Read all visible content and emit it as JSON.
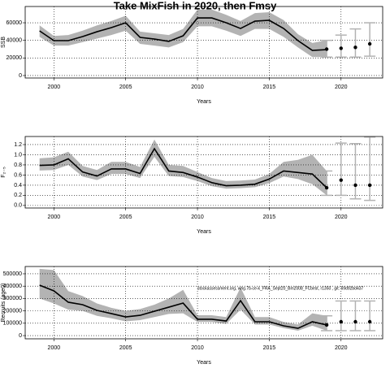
{
  "chart_data": [
    {
      "type": "line",
      "title": "Take MixFish in 2020, then Fmsy",
      "x_label": "Years",
      "y_label": "SSB",
      "x": [
        1999,
        2000,
        2001,
        2002,
        2003,
        2004,
        2005,
        2006,
        2007,
        2008,
        2009,
        2010,
        2011,
        2012,
        2013,
        2014,
        2015,
        2016,
        2017,
        2018,
        2019
      ],
      "xlim": [
        1998,
        2022.9
      ],
      "xticks": [
        2000,
        2005,
        2010,
        2015,
        2020
      ],
      "ylim": [
        -2800,
        78500
      ],
      "yticks": [
        0,
        20000,
        40000,
        60000
      ],
      "grid": true,
      "series": [
        {
          "color": "#000000",
          "band_color": "#b3b3b3",
          "values": [
            50800,
            39700,
            39700,
            44300,
            49800,
            54500,
            60000,
            43400,
            41500,
            38800,
            45200,
            65500,
            65500,
            60000,
            53500,
            61800,
            62800,
            53500,
            39700,
            28600,
            29500
          ],
          "lower": [
            44000,
            34000,
            34000,
            38000,
            42000,
            46000,
            51000,
            36000,
            34000,
            32000,
            38000,
            56000,
            56000,
            51000,
            45000,
            53000,
            53000,
            44000,
            32000,
            21000,
            21000
          ],
          "upper": [
            57000,
            45000,
            46000,
            51000,
            57000,
            62000,
            68000,
            50000,
            48000,
            46000,
            53000,
            75000,
            75000,
            69000,
            62000,
            71000,
            72000,
            63000,
            47000,
            37000,
            40000
          ]
        }
      ],
      "forecast": {
        "color": "#000000",
        "bar_color": "#b3b3b3",
        "x": [
          2019,
          2020,
          2021,
          2022
        ],
        "values": [
          30000,
          31000,
          32000,
          36000
        ],
        "lower": [
          21000,
          21000,
          21000,
          22000
        ],
        "upper": [
          40000,
          46000,
          53000,
          60000
        ]
      }
    },
    {
      "type": "line",
      "x_label": "Years",
      "y_label": "F₂₋₅",
      "x": [
        1999,
        2000,
        2001,
        2002,
        2003,
        2004,
        2005,
        2006,
        2007,
        2008,
        2009,
        2010,
        2011,
        2012,
        2013,
        2014,
        2015,
        2016,
        2017,
        2018,
        2019
      ],
      "xlim": [
        1998,
        2022.9
      ],
      "xticks": [
        2000,
        2005,
        2010,
        2015,
        2020
      ],
      "ylim": [
        -0.05,
        1.36
      ],
      "yticks": [
        {
          "value": 0,
          "label": "0.0"
        },
        0.2,
        0.4,
        0.6,
        0.8,
        {
          "value": 1,
          "label": "1.0"
        },
        1.2
      ],
      "grid": true,
      "series": [
        {
          "color": "#000000",
          "band_color": "#b3b3b3",
          "values": [
            0.79,
            0.8,
            0.92,
            0.66,
            0.58,
            0.72,
            0.72,
            0.63,
            1.12,
            0.68,
            0.65,
            0.56,
            0.45,
            0.39,
            0.4,
            0.42,
            0.52,
            0.68,
            0.65,
            0.62,
            0.35
          ],
          "lower": [
            0.69,
            0.7,
            0.8,
            0.57,
            0.5,
            0.62,
            0.62,
            0.54,
            0.96,
            0.58,
            0.56,
            0.48,
            0.38,
            0.33,
            0.34,
            0.36,
            0.44,
            0.57,
            0.52,
            0.42,
            0.2
          ],
          "upper": [
            0.93,
            0.95,
            1.06,
            0.78,
            0.7,
            0.86,
            0.86,
            0.76,
            1.3,
            0.8,
            0.78,
            0.66,
            0.54,
            0.48,
            0.49,
            0.51,
            0.62,
            0.86,
            0.9,
            1.0,
            0.68
          ]
        }
      ],
      "forecast": {
        "color": "#000000",
        "bar_color": "#b3b3b3",
        "x": [
          2019,
          2020,
          2021,
          2022
        ],
        "values": [
          0.35,
          0.5,
          0.4,
          0.4
        ],
        "lower": [
          0.2,
          0.2,
          0.13,
          0.1
        ],
        "upper": [
          0.68,
          1.23,
          1.22,
          1.35
        ]
      }
    },
    {
      "type": "line",
      "x_label": "Years",
      "y_label": "Recruits (age0)",
      "annotation": "stockassessment.org, whg.7b-ce-k_FRA_Sept20_Bm2008_FCbest, r1350 , git: 69d92bd437",
      "x": [
        1999,
        2000,
        2001,
        2002,
        2003,
        2004,
        2005,
        2006,
        2007,
        2008,
        2009,
        2010,
        2011,
        2012,
        2013,
        2014,
        2015,
        2016,
        2017,
        2018,
        2019
      ],
      "xlim": [
        1998,
        2022.9
      ],
      "xticks": [
        2000,
        2005,
        2010,
        2015,
        2020
      ],
      "ylim": [
        -26000,
        559000
      ],
      "yticks": [
        0,
        100000,
        200000,
        300000,
        400000,
        500000
      ],
      "grid": true,
      "series": [
        {
          "color": "#000000",
          "band_color": "#b3b3b3",
          "values": [
            408000,
            362000,
            270000,
            250000,
            204000,
            178000,
            151000,
            164000,
            197000,
            230000,
            263000,
            132000,
            132000,
            118000,
            283000,
            112000,
            112000,
            79000,
            59000,
            112000,
            86000
          ],
          "lower": [
            300000,
            260000,
            210000,
            200000,
            160000,
            140000,
            115000,
            125000,
            150000,
            175000,
            180000,
            110000,
            110000,
            95000,
            210000,
            90000,
            90000,
            60000,
            40000,
            80000,
            40000
          ],
          "upper": [
            540000,
            530000,
            360000,
            320000,
            260000,
            225000,
            200000,
            215000,
            250000,
            300000,
            370000,
            165000,
            165000,
            150000,
            390000,
            150000,
            150000,
            110000,
            90000,
            180000,
            160000
          ]
        }
      ],
      "forecast": {
        "color": "#000000",
        "bar_color": "#b3b3b3",
        "x": [
          2019,
          2020,
          2021,
          2022
        ],
        "values": [
          86000,
          112000,
          112000,
          112000
        ],
        "lower": [
          40000,
          40000,
          40000,
          40000
        ],
        "upper": [
          160000,
          280000,
          280000,
          280000
        ]
      }
    }
  ]
}
